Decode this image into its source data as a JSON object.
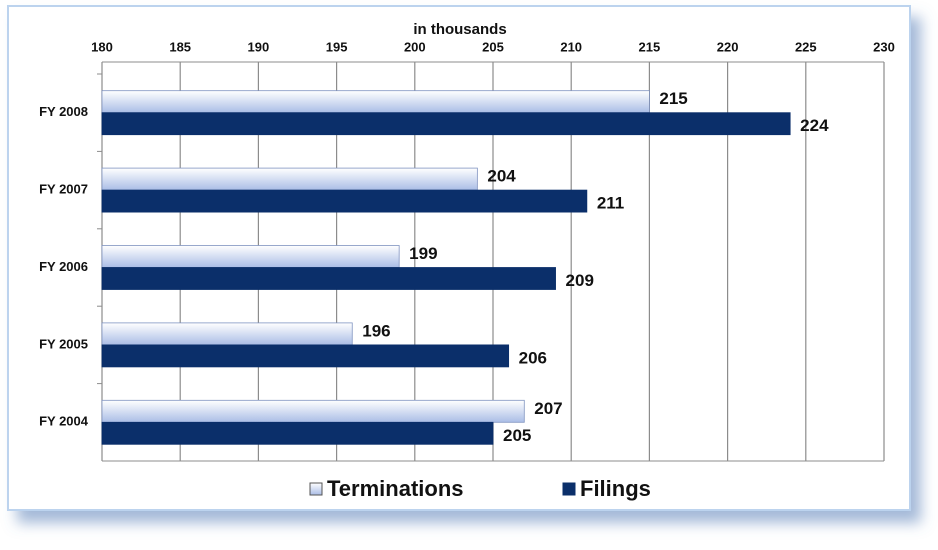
{
  "chart_data": {
    "type": "bar",
    "orientation": "horizontal",
    "x_label": "in thousands",
    "categories": [
      "FY 2008",
      "FY 2007",
      "FY 2006",
      "FY 2005",
      "FY 2004"
    ],
    "series": [
      {
        "name": "Terminations",
        "color": "#aabde6",
        "values": [
          215,
          204,
          199,
          196,
          207
        ]
      },
      {
        "name": "Filings",
        "color": "#0b2f6a",
        "values": [
          224,
          211,
          209,
          206,
          205
        ]
      }
    ],
    "xlim": [
      180,
      230
    ],
    "xticks": [
      180,
      185,
      190,
      195,
      200,
      205,
      210,
      215,
      220,
      225,
      230
    ],
    "grid": true,
    "legend": "bottom"
  }
}
